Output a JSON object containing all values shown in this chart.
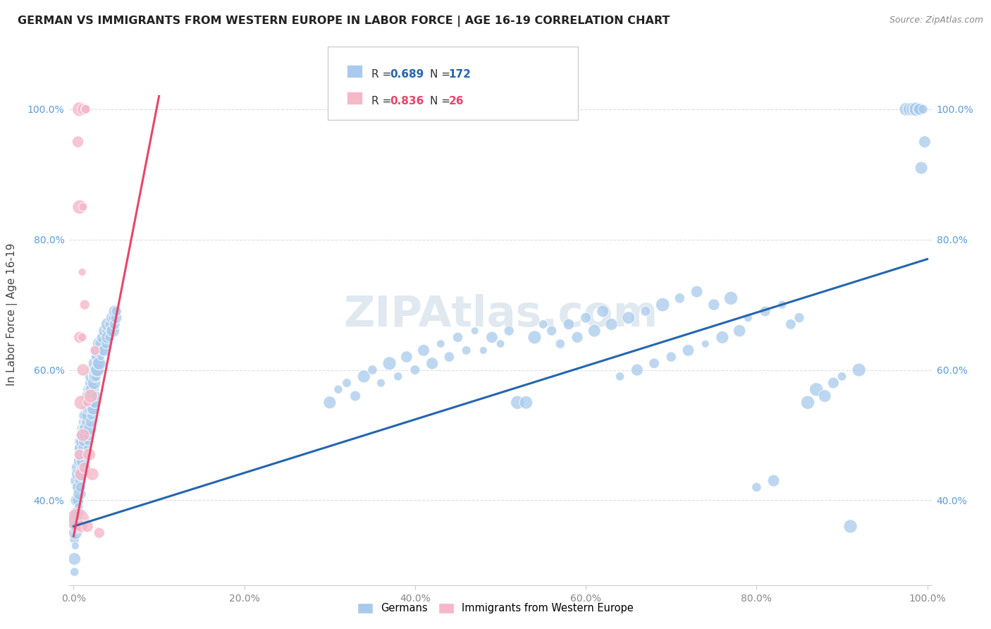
{
  "title": "GERMAN VS IMMIGRANTS FROM WESTERN EUROPE IN LABOR FORCE | AGE 16-19 CORRELATION CHART",
  "source": "Source: ZipAtlas.com",
  "ylabel": "In Labor Force | Age 16-19",
  "blue_R": 0.689,
  "blue_N": 172,
  "pink_R": 0.836,
  "pink_N": 26,
  "blue_line_x": [
    0.0,
    1.0
  ],
  "blue_line_y": [
    0.36,
    0.77
  ],
  "pink_line_x": [
    0.0,
    0.1
  ],
  "pink_line_y": [
    0.345,
    1.02
  ],
  "blue_color": "#a8caec",
  "blue_line_color": "#2565ae",
  "pink_color": "#f5b8c8",
  "pink_line_color": "#e8446a",
  "background_color": "#ffffff",
  "grid_color": "#dddddd",
  "title_color": "#222222",
  "watermark": "ZIPAtlas.com",
  "legend_blue_label": "Germans",
  "legend_pink_label": "Immigrants from Western Europe",
  "blue_points": [
    [
      0.001,
      0.29
    ],
    [
      0.001,
      0.31
    ],
    [
      0.001,
      0.34
    ],
    [
      0.001,
      0.36
    ],
    [
      0.002,
      0.33
    ],
    [
      0.002,
      0.35
    ],
    [
      0.002,
      0.37
    ],
    [
      0.002,
      0.4
    ],
    [
      0.003,
      0.36
    ],
    [
      0.003,
      0.38
    ],
    [
      0.003,
      0.4
    ],
    [
      0.003,
      0.43
    ],
    [
      0.004,
      0.38
    ],
    [
      0.004,
      0.4
    ],
    [
      0.004,
      0.42
    ],
    [
      0.004,
      0.45
    ],
    [
      0.005,
      0.4
    ],
    [
      0.005,
      0.42
    ],
    [
      0.005,
      0.44
    ],
    [
      0.005,
      0.37
    ],
    [
      0.006,
      0.42
    ],
    [
      0.006,
      0.44
    ],
    [
      0.006,
      0.46
    ],
    [
      0.006,
      0.39
    ],
    [
      0.007,
      0.43
    ],
    [
      0.007,
      0.46
    ],
    [
      0.007,
      0.48
    ],
    [
      0.007,
      0.41
    ],
    [
      0.008,
      0.44
    ],
    [
      0.008,
      0.47
    ],
    [
      0.008,
      0.49
    ],
    [
      0.008,
      0.42
    ],
    [
      0.009,
      0.46
    ],
    [
      0.009,
      0.48
    ],
    [
      0.009,
      0.5
    ],
    [
      0.009,
      0.44
    ],
    [
      0.01,
      0.47
    ],
    [
      0.01,
      0.49
    ],
    [
      0.01,
      0.51
    ],
    [
      0.01,
      0.45
    ],
    [
      0.011,
      0.48
    ],
    [
      0.011,
      0.5
    ],
    [
      0.011,
      0.52
    ],
    [
      0.011,
      0.46
    ],
    [
      0.012,
      0.49
    ],
    [
      0.012,
      0.51
    ],
    [
      0.012,
      0.53
    ],
    [
      0.012,
      0.47
    ],
    [
      0.013,
      0.5
    ],
    [
      0.013,
      0.52
    ],
    [
      0.013,
      0.54
    ],
    [
      0.014,
      0.51
    ],
    [
      0.014,
      0.53
    ],
    [
      0.014,
      0.55
    ],
    [
      0.015,
      0.52
    ],
    [
      0.015,
      0.54
    ],
    [
      0.015,
      0.56
    ],
    [
      0.016,
      0.53
    ],
    [
      0.016,
      0.55
    ],
    [
      0.016,
      0.48
    ],
    [
      0.017,
      0.54
    ],
    [
      0.017,
      0.56
    ],
    [
      0.017,
      0.49
    ],
    [
      0.018,
      0.54
    ],
    [
      0.018,
      0.57
    ],
    [
      0.018,
      0.5
    ],
    [
      0.019,
      0.55
    ],
    [
      0.019,
      0.57
    ],
    [
      0.019,
      0.51
    ],
    [
      0.02,
      0.56
    ],
    [
      0.02,
      0.58
    ],
    [
      0.02,
      0.52
    ],
    [
      0.021,
      0.56
    ],
    [
      0.021,
      0.59
    ],
    [
      0.021,
      0.53
    ],
    [
      0.022,
      0.57
    ],
    [
      0.022,
      0.59
    ],
    [
      0.022,
      0.54
    ],
    [
      0.023,
      0.57
    ],
    [
      0.023,
      0.6
    ],
    [
      0.023,
      0.54
    ],
    [
      0.024,
      0.58
    ],
    [
      0.024,
      0.6
    ],
    [
      0.024,
      0.55
    ],
    [
      0.025,
      0.59
    ],
    [
      0.025,
      0.61
    ],
    [
      0.025,
      0.55
    ],
    [
      0.026,
      0.59
    ],
    [
      0.026,
      0.62
    ],
    [
      0.026,
      0.56
    ],
    [
      0.027,
      0.6
    ],
    [
      0.027,
      0.62
    ],
    [
      0.028,
      0.6
    ],
    [
      0.028,
      0.63
    ],
    [
      0.029,
      0.61
    ],
    [
      0.029,
      0.63
    ],
    [
      0.03,
      0.61
    ],
    [
      0.03,
      0.64
    ],
    [
      0.032,
      0.62
    ],
    [
      0.032,
      0.64
    ],
    [
      0.034,
      0.63
    ],
    [
      0.034,
      0.65
    ],
    [
      0.036,
      0.63
    ],
    [
      0.036,
      0.66
    ],
    [
      0.038,
      0.64
    ],
    [
      0.038,
      0.66
    ],
    [
      0.04,
      0.65
    ],
    [
      0.04,
      0.67
    ],
    [
      0.042,
      0.65
    ],
    [
      0.042,
      0.67
    ],
    [
      0.044,
      0.66
    ],
    [
      0.044,
      0.68
    ],
    [
      0.046,
      0.66
    ],
    [
      0.046,
      0.68
    ],
    [
      0.048,
      0.67
    ],
    [
      0.048,
      0.69
    ],
    [
      0.05,
      0.68
    ],
    [
      0.05,
      0.69
    ],
    [
      0.3,
      0.55
    ],
    [
      0.31,
      0.57
    ],
    [
      0.32,
      0.58
    ],
    [
      0.33,
      0.56
    ],
    [
      0.34,
      0.59
    ],
    [
      0.35,
      0.6
    ],
    [
      0.36,
      0.58
    ],
    [
      0.37,
      0.61
    ],
    [
      0.38,
      0.59
    ],
    [
      0.39,
      0.62
    ],
    [
      0.4,
      0.6
    ],
    [
      0.41,
      0.63
    ],
    [
      0.42,
      0.61
    ],
    [
      0.43,
      0.64
    ],
    [
      0.44,
      0.62
    ],
    [
      0.45,
      0.65
    ],
    [
      0.46,
      0.63
    ],
    [
      0.47,
      0.66
    ],
    [
      0.48,
      0.63
    ],
    [
      0.49,
      0.65
    ],
    [
      0.5,
      0.64
    ],
    [
      0.51,
      0.66
    ],
    [
      0.52,
      0.55
    ],
    [
      0.53,
      0.55
    ],
    [
      0.54,
      0.65
    ],
    [
      0.55,
      0.67
    ],
    [
      0.56,
      0.66
    ],
    [
      0.57,
      0.64
    ],
    [
      0.58,
      0.67
    ],
    [
      0.59,
      0.65
    ],
    [
      0.6,
      0.68
    ],
    [
      0.61,
      0.66
    ],
    [
      0.62,
      0.69
    ],
    [
      0.63,
      0.67
    ],
    [
      0.64,
      0.59
    ],
    [
      0.65,
      0.68
    ],
    [
      0.66,
      0.6
    ],
    [
      0.67,
      0.69
    ],
    [
      0.68,
      0.61
    ],
    [
      0.69,
      0.7
    ],
    [
      0.7,
      0.62
    ],
    [
      0.71,
      0.71
    ],
    [
      0.72,
      0.63
    ],
    [
      0.73,
      0.72
    ],
    [
      0.74,
      0.64
    ],
    [
      0.75,
      0.7
    ],
    [
      0.76,
      0.65
    ],
    [
      0.77,
      0.71
    ],
    [
      0.78,
      0.66
    ],
    [
      0.79,
      0.68
    ],
    [
      0.8,
      0.42
    ],
    [
      0.81,
      0.69
    ],
    [
      0.82,
      0.43
    ],
    [
      0.83,
      0.7
    ],
    [
      0.84,
      0.67
    ],
    [
      0.85,
      0.68
    ],
    [
      0.86,
      0.55
    ],
    [
      0.87,
      0.57
    ],
    [
      0.88,
      0.56
    ],
    [
      0.89,
      0.58
    ],
    [
      0.9,
      0.59
    ],
    [
      0.91,
      0.36
    ],
    [
      0.92,
      0.6
    ],
    [
      0.975,
      1.0
    ],
    [
      0.977,
      1.0
    ],
    [
      0.979,
      1.0
    ],
    [
      0.981,
      1.0
    ],
    [
      0.983,
      1.0
    ],
    [
      0.985,
      1.0
    ],
    [
      0.987,
      1.0
    ],
    [
      0.989,
      1.0
    ],
    [
      0.991,
      1.0
    ],
    [
      0.993,
      0.91
    ],
    [
      0.995,
      1.0
    ],
    [
      0.997,
      0.95
    ]
  ],
  "pink_points": [
    [
      0.005,
      0.37
    ],
    [
      0.005,
      0.95
    ],
    [
      0.007,
      0.47
    ],
    [
      0.007,
      0.65
    ],
    [
      0.007,
      0.85
    ],
    [
      0.007,
      1.0
    ],
    [
      0.009,
      0.36
    ],
    [
      0.009,
      0.44
    ],
    [
      0.009,
      0.55
    ],
    [
      0.01,
      0.65
    ],
    [
      0.01,
      0.75
    ],
    [
      0.011,
      0.5
    ],
    [
      0.011,
      0.6
    ],
    [
      0.011,
      0.85
    ],
    [
      0.011,
      1.0
    ],
    [
      0.013,
      0.45
    ],
    [
      0.013,
      0.7
    ],
    [
      0.014,
      1.0
    ],
    [
      0.014,
      1.0
    ],
    [
      0.016,
      0.36
    ],
    [
      0.016,
      0.55
    ],
    [
      0.018,
      0.47
    ],
    [
      0.02,
      0.56
    ],
    [
      0.022,
      0.44
    ],
    [
      0.025,
      0.63
    ],
    [
      0.03,
      0.35
    ]
  ],
  "xlim": [
    -0.005,
    1.005
  ],
  "ylim": [
    0.27,
    1.1
  ],
  "xticks": [
    0.0,
    0.2,
    0.4,
    0.6,
    0.8,
    1.0
  ],
  "yticks": [
    0.4,
    0.6,
    0.8,
    1.0
  ],
  "xtick_labels": [
    "0.0%",
    "20.0%",
    "40.0%",
    "60.0%",
    "80.0%",
    "100.0%"
  ],
  "ytick_labels": [
    "40.0%",
    "60.0%",
    "80.0%",
    "100.0%"
  ]
}
